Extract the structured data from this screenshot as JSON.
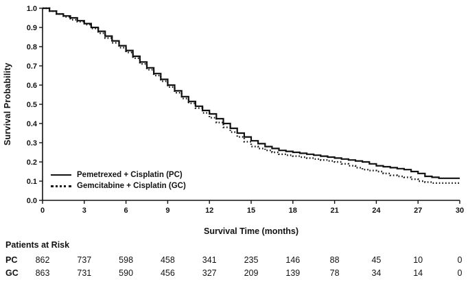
{
  "chart_data": {
    "type": "line",
    "subtype": "kaplan-meier-step",
    "title": "",
    "xlabel": "Survival Time (months)",
    "ylabel": "Survival Probability",
    "xlim": [
      0,
      30
    ],
    "ylim": [
      0.0,
      1.0
    ],
    "grid": false,
    "legend_position": "inside lower-left",
    "xtick_labels": [
      "0",
      "3",
      "6",
      "9",
      "12",
      "15",
      "18",
      "21",
      "24",
      "27",
      "30"
    ],
    "ytick_labels": [
      "0.0",
      "0.1",
      "0.2",
      "0.3",
      "0.4",
      "0.5",
      "0.6",
      "0.7",
      "0.8",
      "0.9",
      "1.0"
    ],
    "x": [
      0,
      0.5,
      1,
      1.5,
      2,
      2.5,
      3,
      3.5,
      4,
      4.5,
      5,
      5.5,
      6,
      6.5,
      7,
      7.5,
      8,
      8.5,
      9,
      9.5,
      10,
      10.5,
      11,
      11.5,
      12,
      12.5,
      13,
      13.5,
      14,
      14.5,
      15,
      15.5,
      16,
      16.5,
      17,
      17.5,
      18,
      18.5,
      19,
      19.5,
      20,
      20.5,
      21,
      21.5,
      22,
      22.5,
      23,
      23.5,
      24,
      24.5,
      25,
      25.5,
      26,
      26.5,
      27,
      27.5,
      28,
      28.5,
      29,
      29.5,
      30
    ],
    "series": [
      {
        "name": "Pemetrexed + Cisplatin (PC)",
        "line_style": "solid",
        "color": "#111111",
        "y": [
          1.0,
          0.985,
          0.97,
          0.96,
          0.95,
          0.935,
          0.92,
          0.9,
          0.88,
          0.855,
          0.83,
          0.805,
          0.78,
          0.75,
          0.72,
          0.69,
          0.66,
          0.63,
          0.6,
          0.57,
          0.54,
          0.515,
          0.49,
          0.468,
          0.45,
          0.425,
          0.4,
          0.375,
          0.35,
          0.33,
          0.31,
          0.295,
          0.28,
          0.27,
          0.26,
          0.255,
          0.25,
          0.245,
          0.24,
          0.235,
          0.23,
          0.225,
          0.22,
          0.215,
          0.21,
          0.205,
          0.2,
          0.19,
          0.18,
          0.175,
          0.17,
          0.165,
          0.16,
          0.15,
          0.14,
          0.125,
          0.12,
          0.115,
          0.115,
          0.115,
          0.115
        ]
      },
      {
        "name": "Gemcitabine + Cisplatin (GC)",
        "line_style": "dotted",
        "color": "#111111",
        "y": [
          1.0,
          0.985,
          0.97,
          0.955,
          0.94,
          0.93,
          0.915,
          0.895,
          0.87,
          0.845,
          0.82,
          0.795,
          0.77,
          0.74,
          0.71,
          0.68,
          0.65,
          0.62,
          0.59,
          0.56,
          0.53,
          0.505,
          0.48,
          0.455,
          0.43,
          0.405,
          0.38,
          0.355,
          0.33,
          0.305,
          0.28,
          0.27,
          0.26,
          0.25,
          0.24,
          0.235,
          0.23,
          0.225,
          0.22,
          0.215,
          0.21,
          0.205,
          0.2,
          0.19,
          0.18,
          0.17,
          0.16,
          0.155,
          0.15,
          0.14,
          0.13,
          0.125,
          0.12,
          0.11,
          0.1,
          0.095,
          0.09,
          0.09,
          0.09,
          0.09,
          0.09
        ]
      }
    ]
  },
  "at_risk_table": {
    "title": "Patients at Risk",
    "rows": [
      {
        "label": "PC",
        "values": [
          862,
          737,
          598,
          458,
          341,
          235,
          146,
          88,
          45,
          10,
          0
        ]
      },
      {
        "label": "GC",
        "values": [
          863,
          731,
          590,
          456,
          327,
          209,
          139,
          78,
          34,
          14,
          0
        ]
      }
    ]
  }
}
